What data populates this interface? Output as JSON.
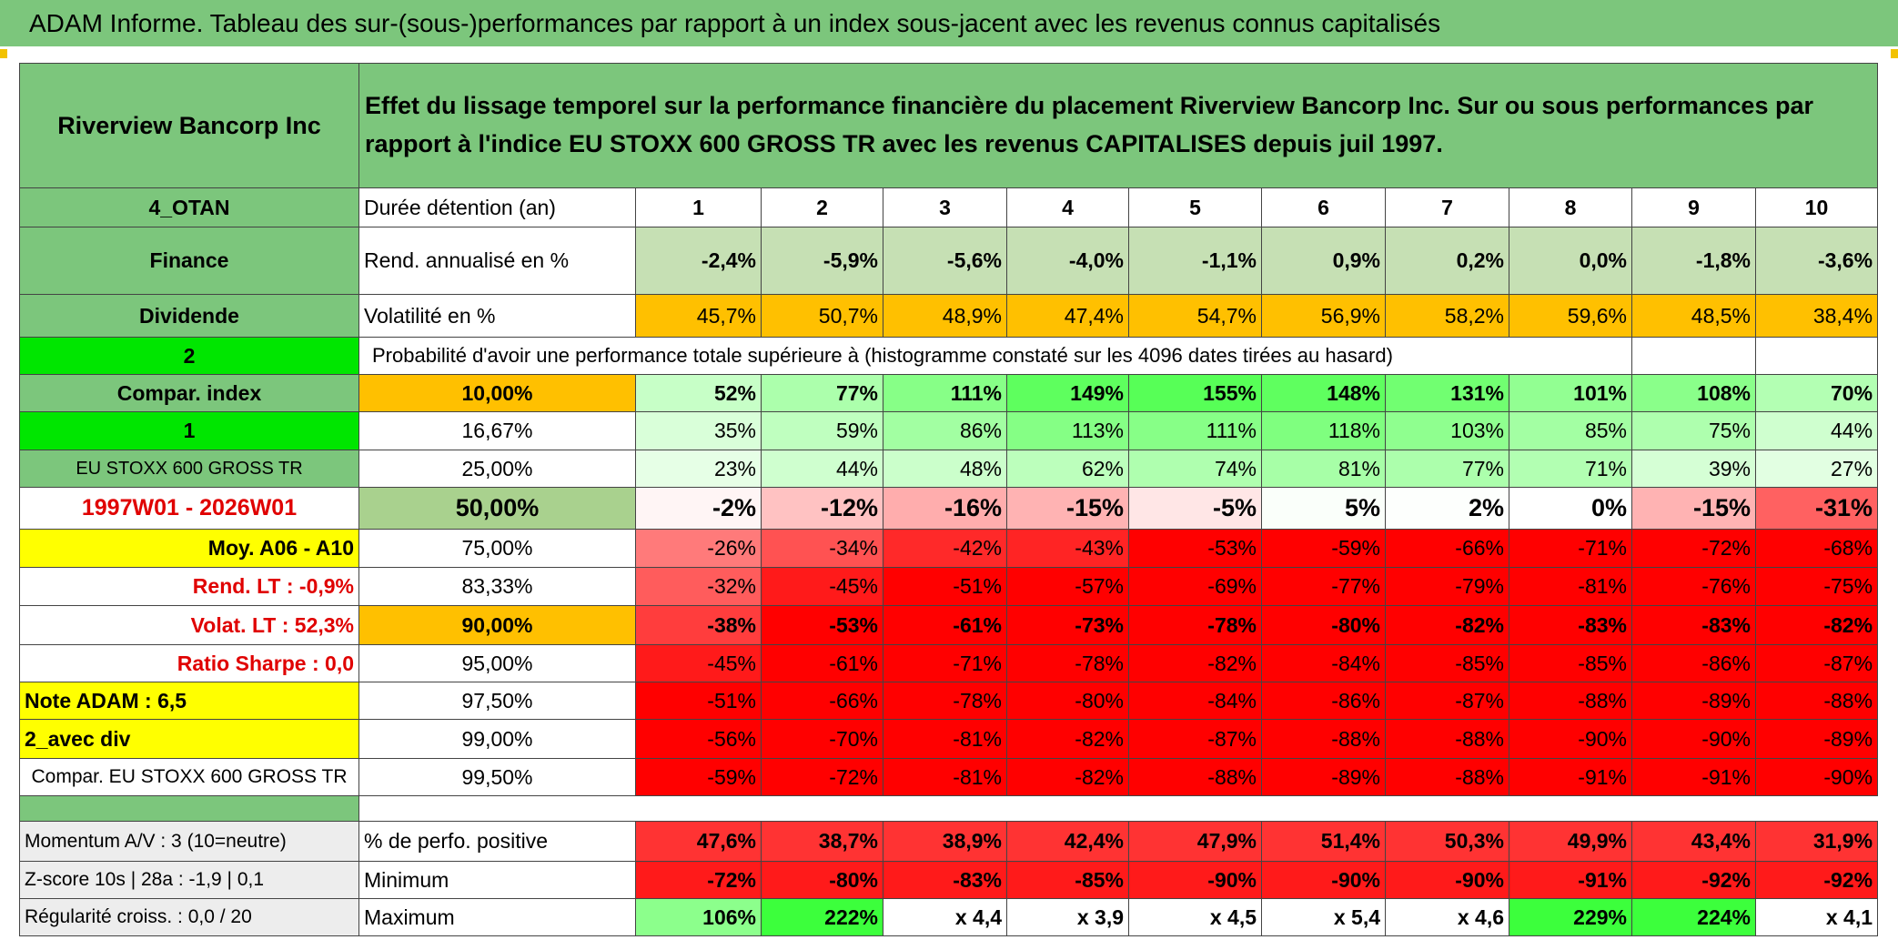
{
  "title": "ADAM Informe. Tableau des sur-(sous-)performances par rapport à un index sous-jacent avec les revenus connus capitalisés",
  "table": {
    "header": {
      "company": "Riverview Bancorp Inc",
      "description": "Effet du lissage temporel sur la performance financière du placement Riverview Bancorp Inc. Sur ou sous performances par rapport à l'indice EU STOXX 600 GROSS TR avec les revenus CAPITALISES depuis juil 1997."
    },
    "rows": [
      {
        "label": "4_OTAN",
        "name": "Durée détention (an)",
        "cells": [
          "1",
          "2",
          "3",
          "4",
          "5",
          "6",
          "7",
          "8",
          "9",
          "10"
        ]
      },
      {
        "label": "Finance",
        "name": "Rend. annualisé en %",
        "cells": [
          "-2,4%",
          "-5,9%",
          "-5,6%",
          "-4,0%",
          "-1,1%",
          "0,9%",
          "0,2%",
          "0,0%",
          "-1,8%",
          "-3,6%"
        ]
      },
      {
        "label": "Dividende",
        "name": "Volatilité en %",
        "cells": [
          "45,7%",
          "50,7%",
          "48,9%",
          "47,4%",
          "54,7%",
          "56,9%",
          "58,2%",
          "59,6%",
          "48,5%",
          "38,4%"
        ]
      },
      {
        "label": "2",
        "name": "Probabilité d'avoir une performance totale supérieure à (histogramme constaté sur les 4096 dates tirées au hasard)"
      },
      {
        "label": "Compar. index",
        "name": "10,00%",
        "cells": [
          "52%",
          "77%",
          "111%",
          "149%",
          "155%",
          "148%",
          "131%",
          "101%",
          "108%",
          "70%"
        ]
      },
      {
        "label": "1",
        "name": "16,67%",
        "cells": [
          "35%",
          "59%",
          "86%",
          "113%",
          "111%",
          "118%",
          "103%",
          "85%",
          "75%",
          "44%"
        ]
      },
      {
        "label": "EU STOXX 600 GROSS TR",
        "name": "25,00%",
        "cells": [
          "23%",
          "44%",
          "48%",
          "62%",
          "74%",
          "81%",
          "77%",
          "71%",
          "39%",
          "27%"
        ]
      },
      {
        "label": "1997W01 - 2026W01",
        "name": "50,00%",
        "cells": [
          "-2%",
          "-12%",
          "-16%",
          "-15%",
          "-5%",
          "5%",
          "2%",
          "0%",
          "-15%",
          "-31%"
        ]
      },
      {
        "label": "Moy. A06 - A10",
        "name": "75,00%",
        "cells": [
          "-26%",
          "-34%",
          "-42%",
          "-43%",
          "-53%",
          "-59%",
          "-66%",
          "-71%",
          "-72%",
          "-68%"
        ]
      },
      {
        "label": "Rend. LT :   -0,9%",
        "name": "83,33%",
        "cells": [
          "-32%",
          "-45%",
          "-51%",
          "-57%",
          "-69%",
          "-77%",
          "-79%",
          "-81%",
          "-76%",
          "-75%"
        ]
      },
      {
        "label": "Volat. LT :   52,3%",
        "name": "90,00%",
        "cells": [
          "-38%",
          "-53%",
          "-61%",
          "-73%",
          "-78%",
          "-80%",
          "-82%",
          "-83%",
          "-83%",
          "-82%"
        ]
      },
      {
        "label": "Ratio Sharpe :    0,0",
        "name": "95,00%",
        "cells": [
          "-45%",
          "-61%",
          "-71%",
          "-78%",
          "-82%",
          "-84%",
          "-85%",
          "-85%",
          "-86%",
          "-87%"
        ]
      },
      {
        "label": "Note ADAM : 6,5",
        "name": "97,50%",
        "cells": [
          "-51%",
          "-66%",
          "-78%",
          "-80%",
          "-84%",
          "-86%",
          "-87%",
          "-88%",
          "-89%",
          "-88%"
        ]
      },
      {
        "label": "2_avec div",
        "name": "99,00%",
        "cells": [
          "-56%",
          "-70%",
          "-81%",
          "-82%",
          "-87%",
          "-88%",
          "-88%",
          "-90%",
          "-90%",
          "-89%"
        ]
      },
      {
        "label": "Compar. EU STOXX 600 GROSS TR",
        "name": "99,50%",
        "cells": [
          "-59%",
          "-72%",
          "-81%",
          "-82%",
          "-88%",
          "-89%",
          "-88%",
          "-91%",
          "-91%",
          "-90%"
        ]
      },
      {
        "label": "Momentum A/V : 3 (10=neutre)",
        "name": "% de perfo. positive",
        "cells": [
          "47,6%",
          "38,7%",
          "38,9%",
          "42,4%",
          "47,9%",
          "51,4%",
          "50,3%",
          "49,9%",
          "43,4%",
          "31,9%"
        ]
      },
      {
        "label": "Z-score 10s | 28a : -1,9 | 0,1",
        "name": "Minimum",
        "cells": [
          "-72%",
          "-80%",
          "-83%",
          "-85%",
          "-90%",
          "-90%",
          "-90%",
          "-91%",
          "-92%",
          "-92%"
        ]
      },
      {
        "label": "Régularité croiss. : 0,0 / 20",
        "name": "Maximum",
        "cells": [
          "106%",
          "222%",
          "x 4,4",
          "x 3,9",
          "x 4,5",
          "x 5,4",
          "x 4,6",
          "229%",
          "224%",
          "x 4,1"
        ]
      }
    ]
  }
}
